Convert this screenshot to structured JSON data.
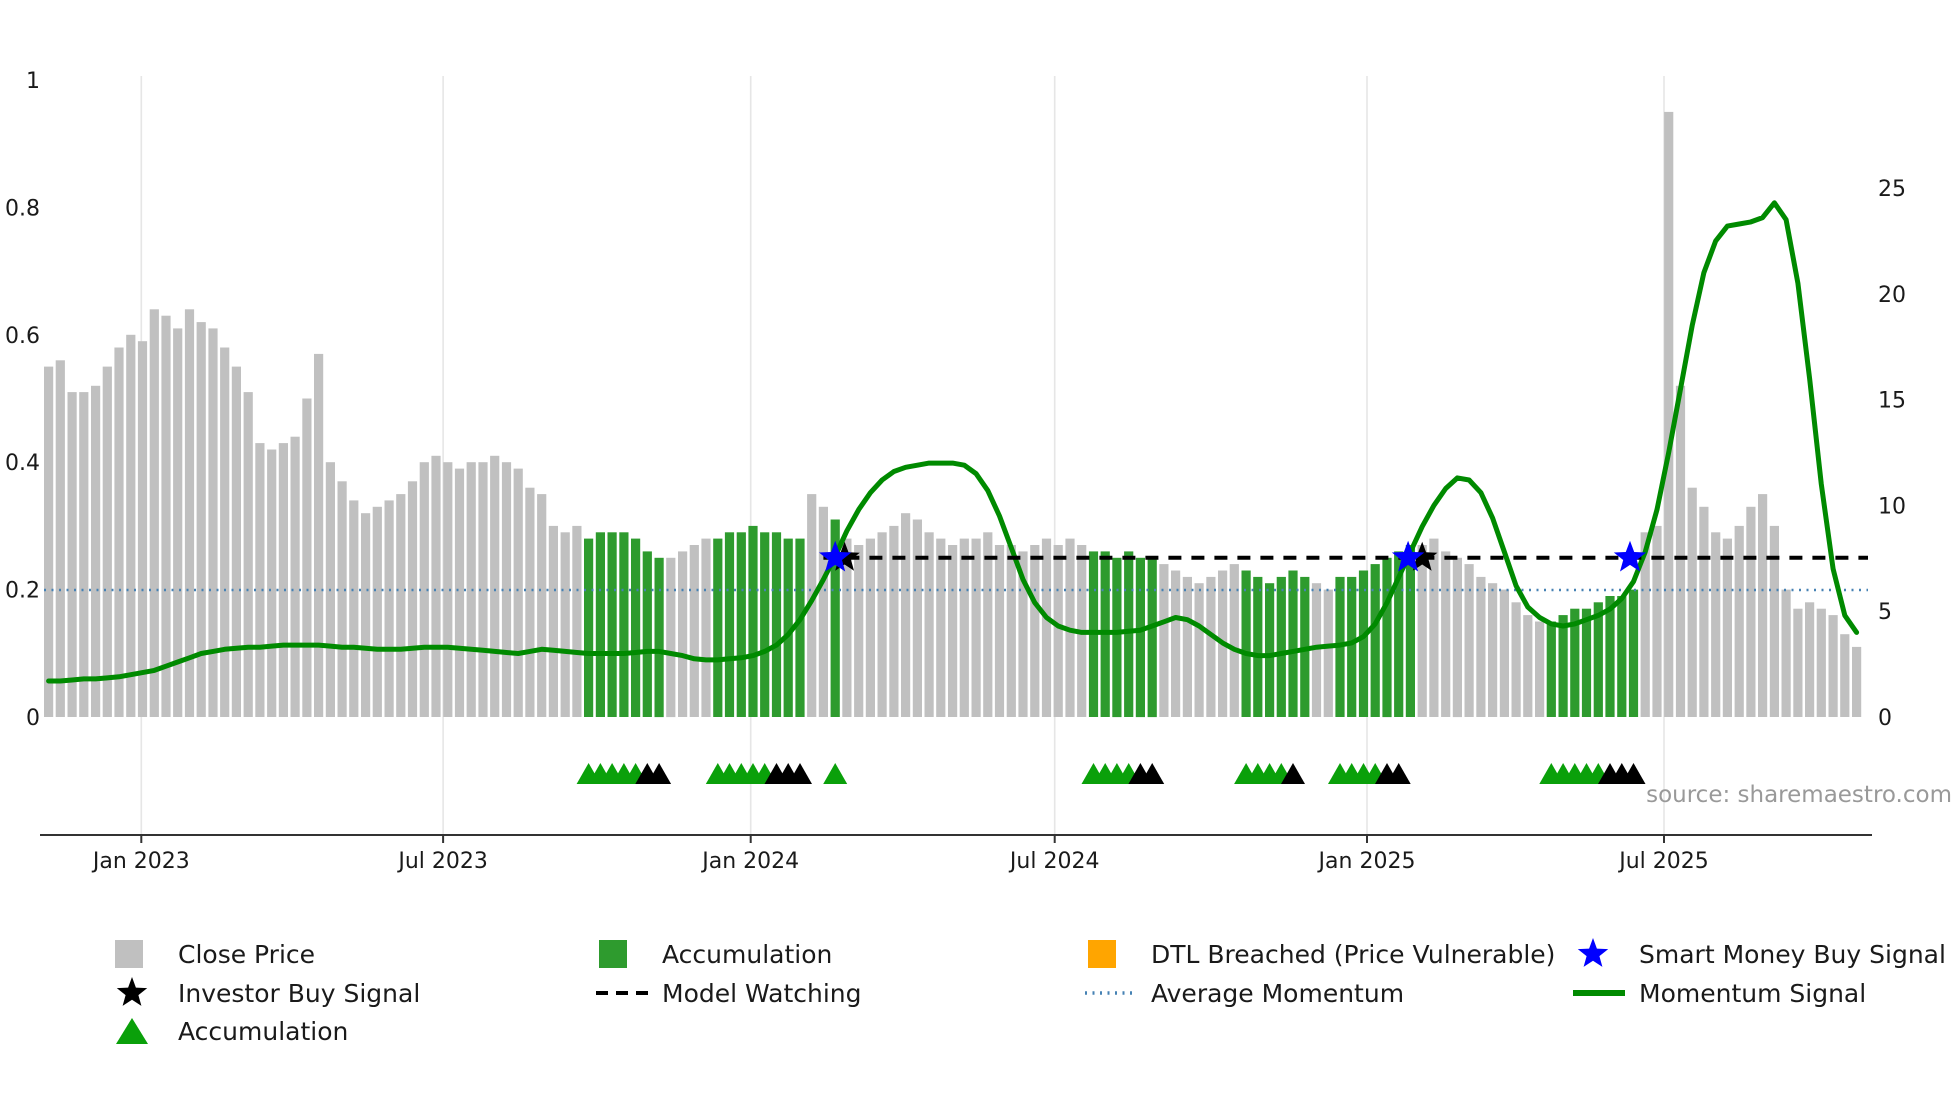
{
  "source": "source: sharemaestro.com",
  "colors": {
    "bar_gray": "#c0c0c0",
    "bar_green": "#2e9b2e",
    "line_green": "#008a00",
    "triangle_green": "#0aa00a",
    "star_blue": "#0000ff",
    "avg_blue": "#4682b4",
    "orange": "#ffa500",
    "black": "#000000",
    "grid": "#e6e6e6",
    "spine": "#333333",
    "axis_text": "#1a1a1a",
    "source_text": "#999999"
  },
  "chart_data": {
    "type": "bar+line",
    "title": "",
    "x_ticks": [
      {
        "pos": 7.9,
        "label": "Jan 2023"
      },
      {
        "pos": 33.6,
        "label": "Jul 2023"
      },
      {
        "pos": 59.8,
        "label": "Jan 2024"
      },
      {
        "pos": 85.7,
        "label": "Jul 2024"
      },
      {
        "pos": 112.3,
        "label": "Jan 2025"
      },
      {
        "pos": 137.6,
        "label": "Jul 2025"
      }
    ],
    "left_axis": {
      "range": [
        0,
        1
      ],
      "values": [
        0,
        0.2,
        0.4,
        0.6,
        0.8,
        1
      ],
      "ticks": [
        "0",
        "0.2",
        "0.4",
        "0.6",
        "0.8",
        "1"
      ]
    },
    "right_axis": {
      "range": [
        0,
        25
      ],
      "values": [
        0,
        5,
        10,
        15,
        20,
        25
      ],
      "ticks": [
        "0",
        "5",
        "10",
        "15",
        "20",
        "25"
      ]
    },
    "bars": {
      "name": "Close Price",
      "green_meaning": "Accumulation",
      "values": [
        0.55,
        0.56,
        0.51,
        0.51,
        0.52,
        0.55,
        0.58,
        0.6,
        0.59,
        0.64,
        0.63,
        0.61,
        0.64,
        0.62,
        0.61,
        0.58,
        0.55,
        0.51,
        0.43,
        0.42,
        0.43,
        0.44,
        0.5,
        0.57,
        0.4,
        0.37,
        0.34,
        0.32,
        0.33,
        0.34,
        0.35,
        0.37,
        0.4,
        0.41,
        0.4,
        0.39,
        0.4,
        0.4,
        0.41,
        0.4,
        0.39,
        0.36,
        0.35,
        0.3,
        0.29,
        0.3,
        0.28,
        0.29,
        0.29,
        0.29,
        0.28,
        0.26,
        0.25,
        0.25,
        0.26,
        0.27,
        0.28,
        0.28,
        0.29,
        0.29,
        0.3,
        0.29,
        0.29,
        0.28,
        0.28,
        0.35,
        0.33,
        0.31,
        0.28,
        0.27,
        0.28,
        0.29,
        0.3,
        0.32,
        0.31,
        0.29,
        0.28,
        0.27,
        0.28,
        0.28,
        0.29,
        0.27,
        0.27,
        0.26,
        0.27,
        0.28,
        0.27,
        0.28,
        0.27,
        0.26,
        0.26,
        0.25,
        0.26,
        0.25,
        0.25,
        0.24,
        0.23,
        0.22,
        0.21,
        0.22,
        0.23,
        0.24,
        0.23,
        0.22,
        0.21,
        0.22,
        0.23,
        0.22,
        0.21,
        0.2,
        0.22,
        0.22,
        0.23,
        0.24,
        0.25,
        0.26,
        0.27,
        0.27,
        0.28,
        0.26,
        0.25,
        0.24,
        0.22,
        0.21,
        0.2,
        0.18,
        0.16,
        0.15,
        0.15,
        0.16,
        0.17,
        0.17,
        0.18,
        0.19,
        0.19,
        0.2,
        0.29,
        0.3,
        0.95,
        0.52,
        0.36,
        0.33,
        0.29,
        0.28,
        0.3,
        0.33,
        0.35,
        0.3,
        0.2,
        0.17,
        0.18,
        0.17,
        0.16,
        0.13,
        0.11
      ],
      "green_ranges": [
        [
          46,
          52
        ],
        [
          57,
          64
        ],
        [
          67,
          67
        ],
        [
          89,
          94
        ],
        [
          102,
          107
        ],
        [
          110,
          116
        ],
        [
          128,
          135
        ]
      ]
    },
    "momentum": {
      "name": "Momentum Signal",
      "axis": "right",
      "values": [
        1.7,
        1.7,
        1.75,
        1.8,
        1.8,
        1.85,
        1.9,
        2.0,
        2.1,
        2.2,
        2.4,
        2.6,
        2.8,
        3.0,
        3.1,
        3.2,
        3.25,
        3.3,
        3.3,
        3.35,
        3.4,
        3.4,
        3.4,
        3.4,
        3.35,
        3.3,
        3.3,
        3.25,
        3.2,
        3.2,
        3.2,
        3.25,
        3.3,
        3.3,
        3.3,
        3.25,
        3.2,
        3.15,
        3.1,
        3.05,
        3.0,
        3.1,
        3.2,
        3.15,
        3.1,
        3.05,
        3.0,
        3.0,
        3.0,
        3.0,
        3.05,
        3.1,
        3.1,
        3.0,
        2.9,
        2.75,
        2.7,
        2.7,
        2.75,
        2.8,
        2.9,
        3.1,
        3.4,
        3.9,
        4.6,
        5.5,
        6.5,
        7.6,
        8.8,
        9.8,
        10.6,
        11.2,
        11.6,
        11.8,
        11.9,
        12.0,
        12.0,
        12.0,
        11.9,
        11.5,
        10.7,
        9.5,
        8.0,
        6.5,
        5.4,
        4.7,
        4.3,
        4.1,
        4.0,
        4.0,
        4.0,
        4.0,
        4.05,
        4.1,
        4.3,
        4.5,
        4.7,
        4.6,
        4.3,
        3.9,
        3.5,
        3.2,
        3.0,
        2.9,
        2.9,
        3.0,
        3.1,
        3.2,
        3.3,
        3.35,
        3.4,
        3.5,
        3.8,
        4.4,
        5.4,
        6.6,
        7.8,
        9.0,
        10.0,
        10.8,
        11.3,
        11.2,
        10.6,
        9.4,
        7.8,
        6.2,
        5.2,
        4.7,
        4.4,
        4.3,
        4.4,
        4.6,
        4.8,
        5.1,
        5.6,
        6.4,
        7.8,
        9.8,
        12.5,
        15.5,
        18.5,
        21.0,
        22.5,
        23.2,
        23.3,
        23.4,
        23.6,
        24.3,
        23.5,
        20.5,
        16.0,
        11.0,
        7.0,
        4.8,
        4.0
      ]
    },
    "average_momentum": {
      "name": "Average Momentum",
      "axis": "right",
      "value": 6.0
    },
    "model_watching": {
      "name": "Model Watching",
      "axis": "left",
      "value": 0.25,
      "start_index": 66
    },
    "smart_money_stars": {
      "name": "Smart Money Buy Signal",
      "level": 0.25,
      "indices": [
        67,
        115.8,
        134.7
      ]
    },
    "investor_stars": {
      "name": "Investor Buy Signal",
      "level": 0.25,
      "indices": [
        67.8,
        117
      ]
    },
    "accumulation_triangles": {
      "name": "Accumulation",
      "indices": [
        46,
        47,
        48,
        49,
        50,
        57,
        58,
        59,
        60,
        61,
        67,
        89,
        90,
        91,
        92,
        102,
        103,
        104,
        105,
        110,
        111,
        112,
        113,
        128,
        129,
        130,
        131,
        132
      ]
    },
    "investor_triangles": {
      "name": "Investor Buy Signal",
      "indices": [
        51,
        52,
        62,
        63,
        64,
        93,
        94,
        106,
        114,
        115,
        133,
        134,
        135
      ]
    }
  },
  "legend": {
    "items": [
      {
        "label": "Close Price",
        "type": "square",
        "color_key": "bar_gray",
        "col": 0,
        "row": 0
      },
      {
        "label": "Accumulation",
        "type": "square",
        "color_key": "bar_green",
        "col": 1,
        "row": 0
      },
      {
        "label": "DTL Breached (Price Vulnerable)",
        "type": "square",
        "color_key": "orange",
        "col": 2,
        "row": 0
      },
      {
        "label": "Smart Money Buy Signal",
        "type": "star",
        "color_key": "star_blue",
        "col": 3,
        "row": 0
      },
      {
        "label": "Investor Buy Signal",
        "type": "star",
        "color_key": "black",
        "col": 0,
        "row": 1
      },
      {
        "label": "Model Watching",
        "type": "dashed-line",
        "color_key": "black",
        "col": 1,
        "row": 1
      },
      {
        "label": "Average Momentum",
        "type": "dotted-line",
        "color_key": "avg_blue",
        "col": 2,
        "row": 1
      },
      {
        "label": "Momentum Signal",
        "type": "solid-line",
        "color_key": "line_green",
        "col": 3,
        "row": 1
      },
      {
        "label": "Accumulation",
        "type": "triangle",
        "color_key": "triangle_green",
        "col": 0,
        "row": 2
      }
    ]
  }
}
